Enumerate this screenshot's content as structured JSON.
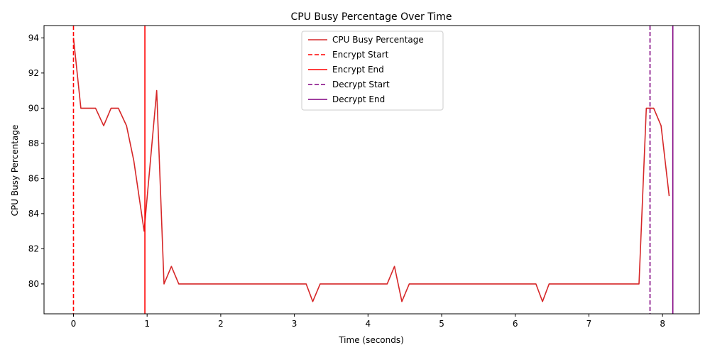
{
  "chart_data": {
    "type": "line",
    "title": "CPU Busy Percentage Over Time",
    "xlabel": "Time (seconds)",
    "ylabel": "CPU Busy Percentage",
    "xlim": [
      -0.4,
      8.5
    ],
    "ylim": [
      78.3,
      94.7
    ],
    "xticks": [
      0,
      1,
      2,
      3,
      4,
      5,
      6,
      7,
      8
    ],
    "yticks": [
      80,
      82,
      84,
      86,
      88,
      90,
      92,
      94
    ],
    "grid": false,
    "legend_position": "top-center",
    "series": [
      {
        "name": "CPU Busy Percentage",
        "color": "#d62728",
        "x": [
          0.0,
          0.1,
          0.2,
          0.3,
          0.41,
          0.51,
          0.61,
          0.72,
          0.82,
          0.96,
          1.13,
          1.23,
          1.33,
          1.43,
          1.54,
          1.64,
          1.74,
          1.84,
          1.95,
          2.05,
          2.15,
          2.25,
          2.36,
          2.46,
          2.56,
          2.66,
          2.77,
          2.87,
          2.97,
          3.07,
          3.16,
          3.25,
          3.35,
          3.45,
          3.55,
          3.65,
          3.75,
          3.85,
          3.95,
          4.05,
          4.15,
          4.26,
          4.36,
          4.46,
          4.56,
          4.66,
          4.76,
          4.86,
          4.97,
          5.07,
          5.17,
          5.27,
          5.37,
          5.48,
          5.58,
          5.68,
          5.78,
          5.88,
          5.98,
          6.08,
          6.18,
          6.28,
          6.37,
          6.46,
          6.56,
          6.66,
          6.76,
          6.86,
          6.97,
          7.07,
          7.17,
          7.27,
          7.37,
          7.47,
          7.57,
          7.68,
          7.78,
          7.88,
          7.98,
          8.09
        ],
        "y": [
          94,
          90,
          90,
          90,
          89,
          90,
          90,
          89,
          87,
          83,
          91,
          80,
          81,
          80,
          80,
          80,
          80,
          80,
          80,
          80,
          80,
          80,
          80,
          80,
          80,
          80,
          80,
          80,
          80,
          80,
          80,
          79,
          80,
          80,
          80,
          80,
          80,
          80,
          80,
          80,
          80,
          80,
          81,
          79,
          80,
          80,
          80,
          80,
          80,
          80,
          80,
          80,
          80,
          80,
          80,
          80,
          80,
          80,
          80,
          80,
          80,
          80,
          79,
          80,
          80,
          80,
          80,
          80,
          80,
          80,
          80,
          80,
          80,
          80,
          80,
          80,
          90,
          90,
          89,
          85
        ]
      }
    ],
    "markers": [
      {
        "name": "Encrypt Start",
        "x": 0.0,
        "color": "#ff0000",
        "dashed": true
      },
      {
        "name": "Encrypt End",
        "x": 0.97,
        "color": "#ff0000",
        "dashed": false
      },
      {
        "name": "Decrypt Start",
        "x": 7.83,
        "color": "#800080",
        "dashed": true
      },
      {
        "name": "Decrypt End",
        "x": 8.14,
        "color": "#800080",
        "dashed": false
      }
    ]
  }
}
